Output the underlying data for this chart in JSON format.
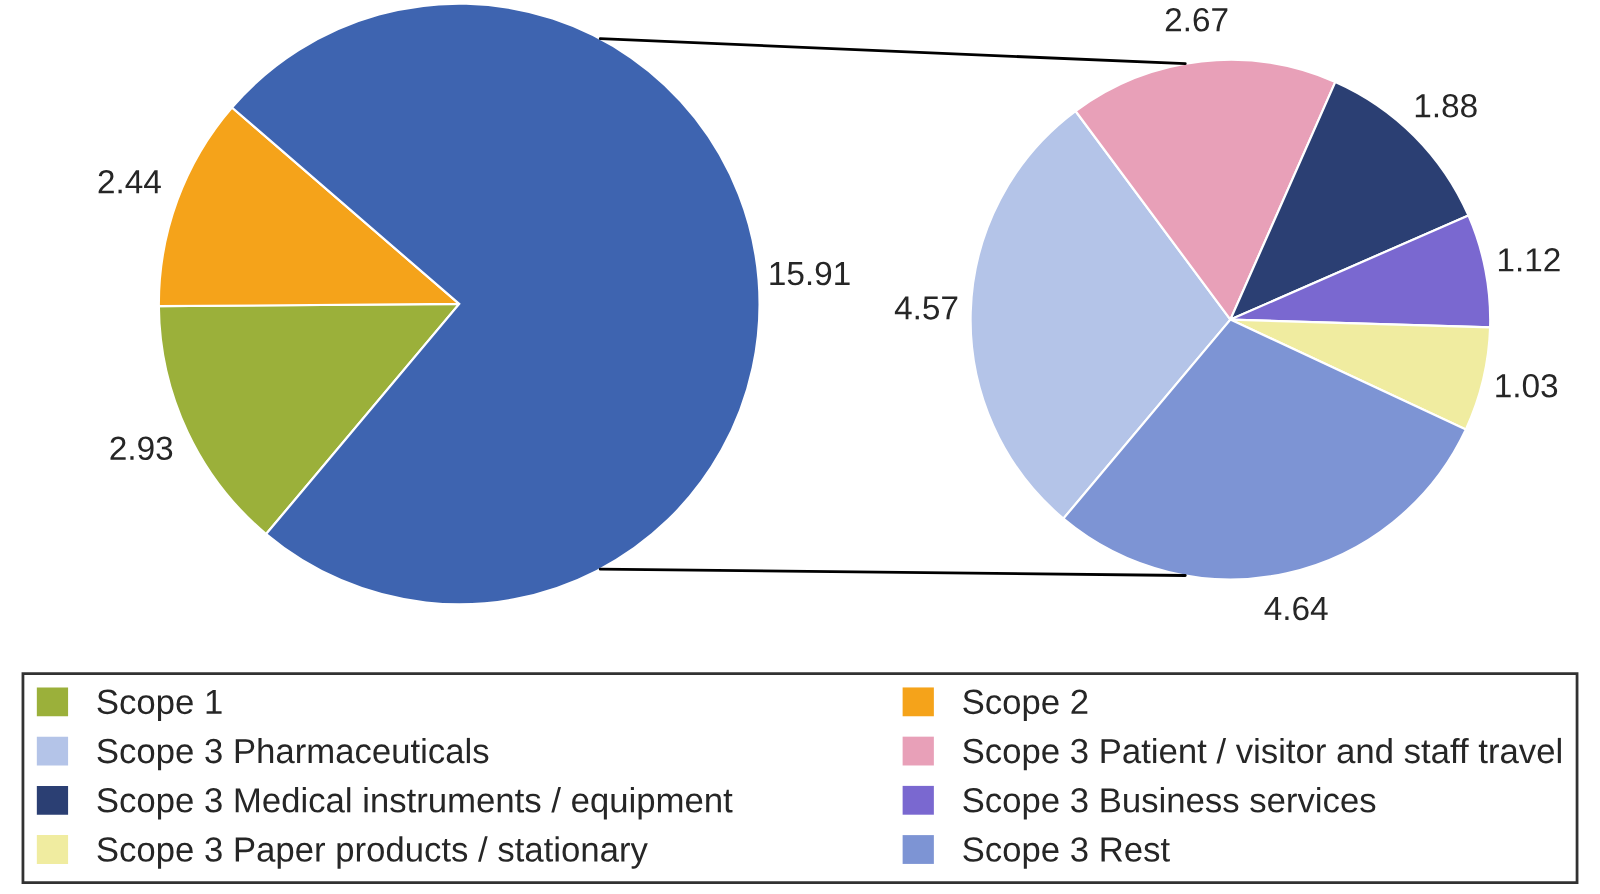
{
  "chart_data": [
    {
      "type": "pie",
      "categories": [
        "Scope 1",
        "Scope 2",
        null
      ],
      "values": [
        2.93,
        2.44,
        15.91
      ],
      "colors": [
        "#9bb03a",
        "#f5a31a",
        "#3e64b0"
      ],
      "data_labels": true,
      "legend": "bottom"
    },
    {
      "type": "pie",
      "categories": [
        "Scope 3 Pharmaceuticals",
        "Scope 3 Patient / visitor and staff travel",
        "Scope 3 Medical instruments / equipment",
        "Scope 3 Business services",
        "Scope 3 Paper products / stationary",
        "Scope 3 Rest"
      ],
      "values": [
        4.57,
        2.67,
        1.88,
        1.12,
        1.03,
        4.64
      ],
      "colors": [
        "#b4c4e8",
        "#e8a0b8",
        "#2b3f73",
        "#7a68d0",
        "#f0eca0",
        "#7d94d4"
      ],
      "data_labels": true,
      "legend": "bottom"
    }
  ]
}
